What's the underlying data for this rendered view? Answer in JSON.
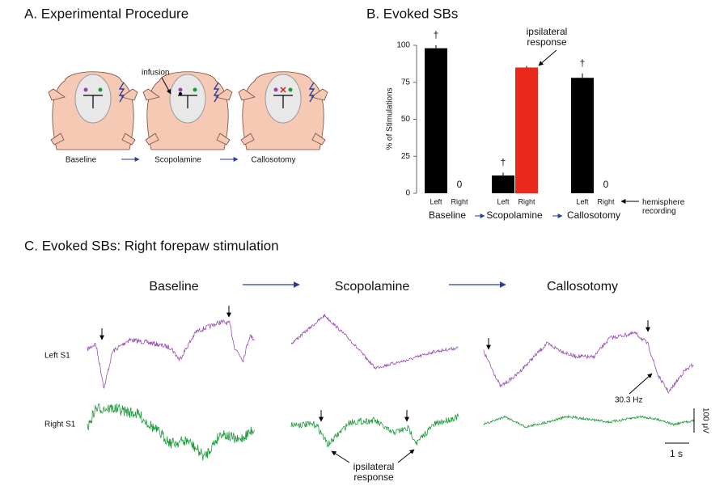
{
  "panel_a": {
    "title": "A. Experimental Procedure",
    "infusion": "infusion",
    "stages": [
      "Baseline",
      "Scopolamine",
      "Callosotomy"
    ]
  },
  "chart_data": {
    "type": "bar",
    "title": "B. Evoked SBs",
    "y_label": "% of Stimulations",
    "categories": [
      "Baseline",
      "Scopolamine",
      "Callosotomy"
    ],
    "series": [
      {
        "name": "Left",
        "values": [
          98,
          12,
          78
        ],
        "errors": [
          2,
          2,
          3
        ],
        "colors": [
          "#000000",
          "#000000",
          "#000000"
        ]
      },
      {
        "name": "Right",
        "values": [
          0,
          85,
          0
        ],
        "errors": [
          0,
          1,
          0
        ],
        "colors": [
          "#000000",
          "#e8291c",
          "#000000"
        ]
      }
    ],
    "ylim": [
      0,
      100
    ],
    "yticks": [
      0,
      25,
      50,
      75,
      100
    ],
    "dagger": "†",
    "ipsilateral_note": "ipsilateral response",
    "recording_note": "hemisphere recording"
  },
  "panel_c": {
    "title": "C. Evoked SBs: Right forepaw stimulation",
    "conditions": [
      "Baseline",
      "Scopolamine",
      "Callosotomy"
    ],
    "rows": [
      "Left S1",
      "Right S1"
    ],
    "frequency": "30.3 Hz",
    "ipsilateral_note": "ipsilateral response",
    "scale_v": "100 μV",
    "scale_t": "1 s"
  }
}
